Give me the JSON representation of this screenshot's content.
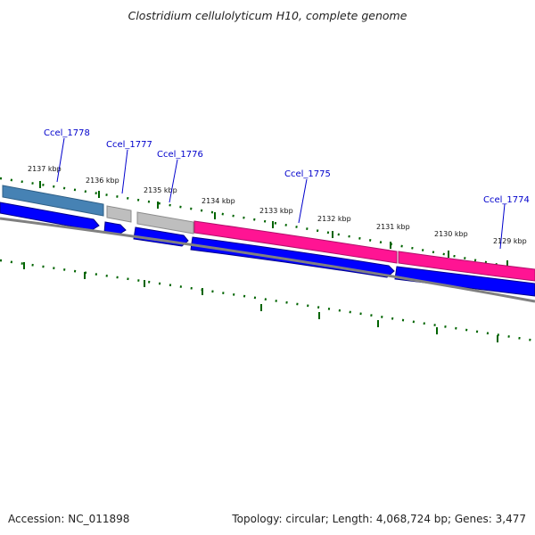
{
  "title": "Clostridium cellulolyticum H10, complete genome",
  "accession": "Accession: NC_011898",
  "summary": "Topology: circular; Length: 4,068,724 bp; Genes: 3,477",
  "colors": {
    "forward_cds_blue": "#4682B4",
    "forward_cds_gray": "#BEBEBE",
    "forward_cds_pink": "#FF1493",
    "reverse_cds": "#0000FF",
    "backbone": "#808080",
    "ticks": "#006400",
    "gene_label": "#0000CC"
  },
  "ticks": [
    "2137 kbp",
    "2136 kbp",
    "2135 kbp",
    "2134 kbp",
    "2133 kbp",
    "2132 kbp",
    "2131 kbp",
    "2130 kbp",
    "2129 kbp"
  ],
  "genes": [
    "Ccel_1778",
    "Ccel_1777",
    "Ccel_1776",
    "Ccel_1775",
    "Ccel_1774"
  ]
}
